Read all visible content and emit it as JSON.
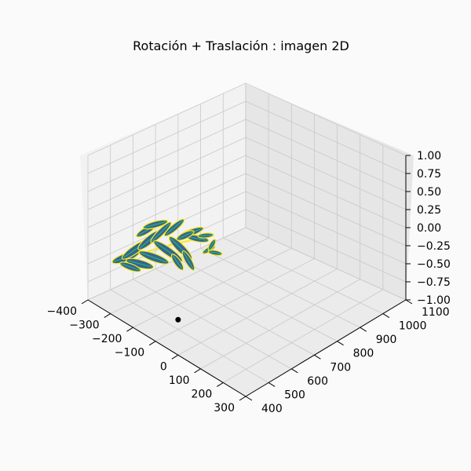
{
  "chart_data": {
    "type": "scatter3d",
    "title": "Rotación + Traslación : imagen 2D",
    "xlim": [
      -400,
      300
    ],
    "ylim": [
      400,
      1100
    ],
    "zlim": [
      -1.0,
      1.0
    ],
    "x_ticks": [
      "−400",
      "−300",
      "−200",
      "−100",
      "0",
      "100",
      "200",
      "300"
    ],
    "y_ticks": [
      "400",
      "500",
      "600",
      "700",
      "800",
      "900",
      "1000",
      "1100"
    ],
    "z_ticks": [
      "−1.00",
      "−0.75",
      "−0.50",
      "−0.25",
      "0.00",
      "0.25",
      "0.50",
      "0.75",
      "1.00"
    ],
    "grid": true,
    "view": "default 3d (elev 30, azim -60)",
    "series": [
      {
        "marker": "dot",
        "color": "#000000",
        "points": [
          [
            0,
            400,
            -1.0
          ]
        ]
      }
    ],
    "image_surface": {
      "content": "fern leaf image, viridis colormap",
      "plane": "z=0",
      "colors": [
        "#440154",
        "#31688e",
        "#35b779",
        "#fde725"
      ]
    }
  }
}
